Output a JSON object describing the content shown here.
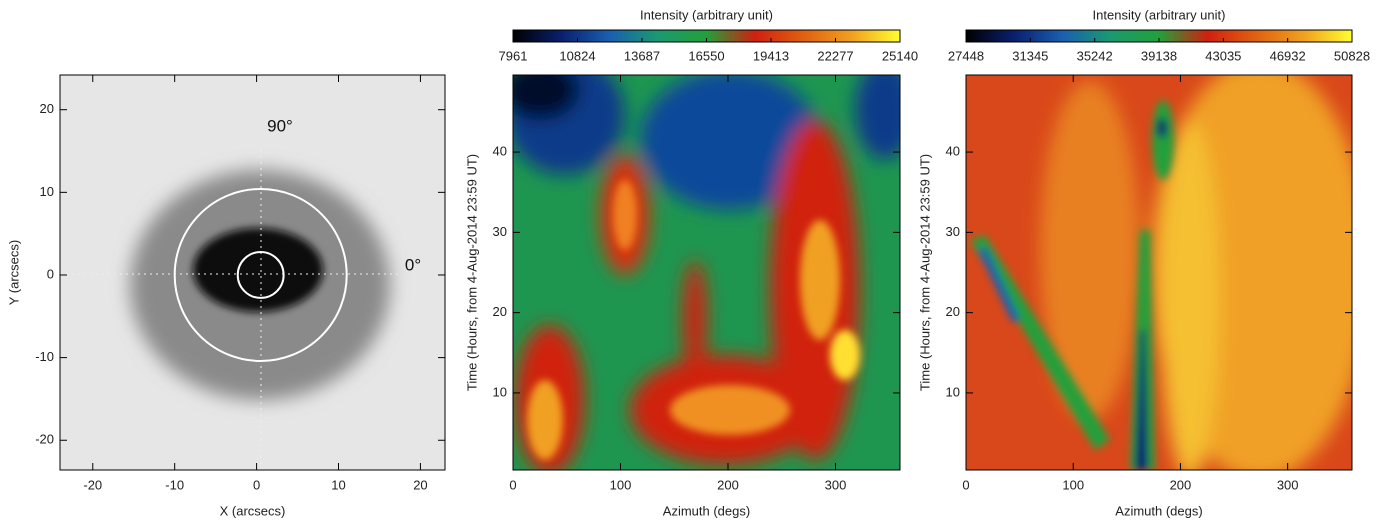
{
  "chart_data": [
    {
      "type": "image",
      "xlabel": "X (arcsecs)",
      "ylabel": "Y (arcsecs)",
      "xlim": [
        -24,
        23
      ],
      "ylim": [
        -23.6,
        24.2
      ],
      "xticks": [
        -20,
        -10,
        0,
        10,
        20
      ],
      "yticks": [
        -20,
        -10,
        0,
        10,
        20
      ],
      "annotations": [
        "90°",
        "0°"
      ],
      "circles": [
        {
          "x": 0.5,
          "y": 0,
          "r": 2.8,
          "color": "#ffffff"
        },
        {
          "x": 0.5,
          "y": 0,
          "r": 10.5,
          "color": "#ffffff"
        }
      ]
    },
    {
      "type": "heatmap",
      "xlabel": "Azimuth (degs)",
      "ylabel": "Time (Hours, from 4-Aug-2014 23:59 UT)",
      "xlim": [
        0,
        360
      ],
      "ylim": [
        0.4,
        49.6
      ],
      "xticks": [
        0,
        100,
        200,
        300
      ],
      "yticks": [
        10,
        20,
        30,
        40
      ],
      "colorbar": {
        "label": "Intensity (arbitrary unit)",
        "lim": [
          7961,
          25140
        ],
        "ticks": [
          7961,
          10824,
          13687,
          16550,
          19413,
          22277,
          25140
        ],
        "colors": [
          "#000000",
          "#0a1f6e",
          "#1a5fb0",
          "#1a9a70",
          "#22a03a",
          "#d02010",
          "#e06010",
          "#f0a020",
          "#ffff30"
        ]
      }
    },
    {
      "type": "heatmap",
      "xlabel": "Azimuth (degs)",
      "ylabel": "Time (Hours, from 4-Aug-2014 23:59 UT)",
      "xlim": [
        0,
        360
      ],
      "ylim": [
        0.4,
        49.6
      ],
      "xticks": [
        0,
        100,
        200,
        300
      ],
      "yticks": [
        10,
        20,
        30,
        40
      ],
      "colorbar": {
        "label": "Intensity (arbitrary unit)",
        "lim": [
          27448,
          50828
        ],
        "ticks": [
          27448,
          31345,
          35242,
          39138,
          43035,
          46932,
          50828
        ],
        "colors": [
          "#000000",
          "#0a1f6e",
          "#1a5fb0",
          "#1a9a70",
          "#22a03a",
          "#d02010",
          "#e06010",
          "#f0a020",
          "#ffff30"
        ]
      }
    }
  ]
}
